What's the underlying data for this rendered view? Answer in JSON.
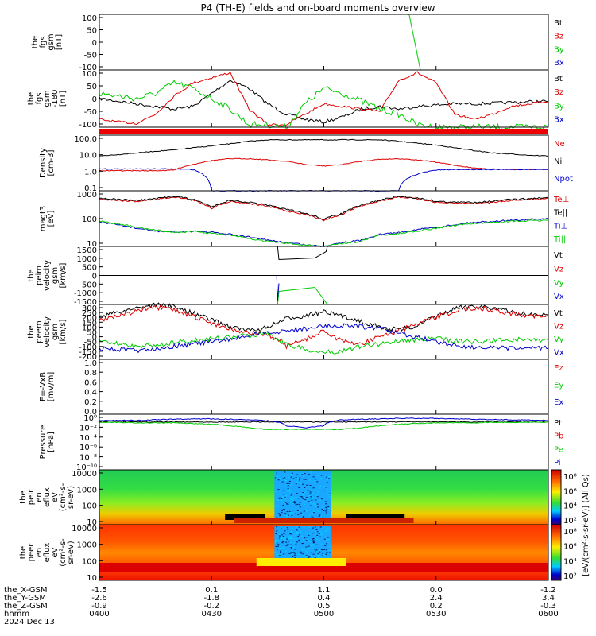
{
  "title": "P4 (TH-E) fields and on-board moments overview",
  "colors": {
    "black": "#000000",
    "red": "#dd0000",
    "green": "#00cc00",
    "blue": "#0000cc",
    "purple": "#cc00cc"
  },
  "panels": [
    {
      "id": "fgs",
      "ylabel": [
        "the",
        "fgs",
        "gsm",
        "[nT]"
      ],
      "ticks": [
        "100",
        "50",
        "0",
        "-50",
        "-100"
      ],
      "legend": [
        {
          "text": "Bt",
          "color": "#000000"
        },
        {
          "text": "Bz",
          "color": "#dd0000"
        },
        {
          "text": "By",
          "color": "#00cc00"
        },
        {
          "text": "Bx",
          "color": "#0000cc"
        }
      ]
    },
    {
      "id": "fgs2",
      "ylabel": [
        "the",
        "fgs",
        "gsm",
        "-180",
        "[nT]"
      ],
      "ticks": [
        "100",
        "50",
        "0",
        "-50",
        "-100"
      ],
      "legend": [
        {
          "text": "Bt",
          "color": "#000000"
        },
        {
          "text": "Bz",
          "color": "#dd0000"
        },
        {
          "text": "By",
          "color": "#00cc00"
        },
        {
          "text": "Bx",
          "color": "#0000cc"
        }
      ]
    },
    {
      "id": "density",
      "ylabel": [
        "Density",
        "[cm-3]"
      ],
      "ticks": [
        "100.0",
        "10.0",
        "1.0",
        "0.1"
      ],
      "legend": [
        {
          "text": "Ne",
          "color": "#dd0000"
        },
        {
          "text": "Ni",
          "color": "#000000"
        },
        {
          "text": "Npot",
          "color": "#0000cc"
        }
      ]
    },
    {
      "id": "temp",
      "ylabel": [
        "magt3",
        "[eV]"
      ],
      "ticks": [
        "1000",
        "100",
        "10"
      ],
      "legend": [
        {
          "text": "Te⊥",
          "color": "#dd0000"
        },
        {
          "text": "Te||",
          "color": "#000000"
        },
        {
          "text": "Ti⊥",
          "color": "#0000cc"
        },
        {
          "text": "Ti||",
          "color": "#00cc00"
        }
      ]
    },
    {
      "id": "peim",
      "ylabel": [
        "the",
        "peim",
        "velocity",
        "gsm",
        "[km/s]"
      ],
      "ticks": [
        "1500",
        "1000",
        "500",
        "0",
        "-500",
        "-1000",
        "-1500"
      ],
      "legend": [
        {
          "text": "Vt",
          "color": "#000000"
        },
        {
          "text": "Vz",
          "color": "#dd0000"
        },
        {
          "text": "Vy",
          "color": "#00cc00"
        },
        {
          "text": "Vx",
          "color": "#0000cc"
        }
      ]
    },
    {
      "id": "peem",
      "ylabel": [
        "the",
        "peem",
        "velocity",
        "gsm",
        "[km/s]"
      ],
      "ticks": [
        "300",
        "250",
        "200",
        "150",
        "100",
        "50",
        "0",
        "-50",
        "-100",
        "-150",
        "-200"
      ],
      "legend": [
        {
          "text": "Vt",
          "color": "#000000"
        },
        {
          "text": "Vz",
          "color": "#dd0000"
        },
        {
          "text": "Vy",
          "color": "#00cc00"
        },
        {
          "text": "Vx",
          "color": "#0000cc"
        }
      ]
    },
    {
      "id": "efield",
      "ylabel": [
        "E=-VxB",
        "[mV/m]"
      ],
      "ticks": [
        "1.0",
        "0.8",
        "0.6",
        "0.4",
        "0.2",
        "0.0"
      ],
      "legend": [
        {
          "text": "Ez",
          "color": "#dd0000"
        },
        {
          "text": "Ey",
          "color": "#00cc00"
        },
        {
          "text": "Ex",
          "color": "#0000cc"
        }
      ]
    },
    {
      "id": "pressure",
      "ylabel": [
        "Pressure",
        "[nPa]"
      ],
      "ticks": [
        "10⁰",
        "10⁻²",
        "10⁻⁴",
        "10⁻⁶",
        "10⁻⁸",
        "10⁻¹⁰"
      ],
      "legend": [
        {
          "text": "Pt",
          "color": "#000000"
        },
        {
          "text": "Pb",
          "color": "#dd0000"
        },
        {
          "text": "Pe",
          "color": "#00cc00"
        },
        {
          "text": "Pi",
          "color": "#0000cc"
        }
      ]
    },
    {
      "id": "peir",
      "ylabel": [
        "the",
        "peir",
        "en",
        "eflux",
        "eV",
        "(cm²-s-",
        "sr-eV)"
      ],
      "ticks": [
        "10000",
        "1000",
        "100",
        "10"
      ],
      "cbar_ticks": [
        "10⁸",
        "10⁶",
        "10⁴",
        "10²"
      ],
      "cbar_label": "[eV/(cm²-s-sr-eV)] (All Qs)"
    },
    {
      "id": "peer",
      "ylabel": [
        "the",
        "peer",
        "en",
        "eflux",
        "eV",
        "(cm²-s-",
        "sr-eV)"
      ],
      "ticks": [
        "10000",
        "1000",
        "100",
        "10"
      ],
      "cbar_ticks": [
        "10⁸",
        "10⁶",
        "10⁴",
        "10²"
      ],
      "cbar_label": "[eV/(cm²-s-sr-eV)] (All Qs)"
    }
  ],
  "xaxis": {
    "row_labels": [
      "the_X-GSM",
      "the_Y-GSM",
      "the_Z-GSM",
      "hhmm",
      "2024 Dec 13"
    ],
    "columns": [
      {
        "x": "-1.5",
        "y": "-2.6",
        "z": "-0.9",
        "t": "0400"
      },
      {
        "x": "0.1",
        "y": "-1.8",
        "z": "-0.2",
        "t": "0430"
      },
      {
        "x": "1.1",
        "y": "0.4",
        "z": "0.5",
        "t": "0500"
      },
      {
        "x": "0.0",
        "y": "2.4",
        "z": "0.2",
        "t": "0530"
      },
      {
        "x": "-1.2",
        "y": "3.4",
        "z": "-0.3",
        "t": "0600"
      }
    ]
  },
  "chart_data": {
    "type": "line",
    "title": "P4 (TH-E) fields and on-board moments overview",
    "time_range": [
      "0400",
      "0600"
    ],
    "date": "2024 Dec 13",
    "x_ticks": [
      "0400",
      "0430",
      "0500",
      "0530",
      "0600"
    ],
    "x": [
      "0400",
      "0405",
      "0410",
      "0415",
      "0420",
      "0425",
      "0430",
      "0435",
      "0440",
      "0445",
      "0450",
      "0455",
      "0500",
      "0505",
      "0510",
      "0515",
      "0520",
      "0525",
      "0530",
      "0535",
      "0540",
      "0545",
      "0550",
      "0555",
      "0600"
    ],
    "density": {
      "ylim": [
        0.05,
        200
      ],
      "scale": "log",
      "series": [
        {
          "name": "Ni",
          "color": "#000000",
          "values": [
            9,
            11,
            14,
            18,
            22,
            30,
            40,
            55,
            80,
            100,
            100,
            100,
            100,
            100,
            100,
            100,
            80,
            60,
            45,
            30,
            20,
            14,
            12,
            10,
            9
          ]
        },
        {
          "name": "Ne",
          "color": "#dd0000",
          "values": [
            1.0,
            1.0,
            1.0,
            1.0,
            1.1,
            2.5,
            4.5,
            6,
            6,
            5,
            4,
            2.5,
            2.0,
            2.5,
            4,
            5.5,
            6,
            5,
            3.5,
            2.2,
            1.5,
            1.3,
            1.2,
            1.2,
            1.2
          ]
        },
        {
          "name": "Npot",
          "color": "#0000cc",
          "values": [
            1.3,
            1.3,
            1.3,
            1.3,
            1.3,
            1.2,
            0.05,
            0.05,
            0.05,
            0.05,
            0.05,
            0.05,
            0.05,
            0.05,
            0.05,
            0.05,
            0.05,
            0.6,
            1.1,
            1.2,
            1.2,
            1.2,
            1.2,
            1.2,
            1.2
          ]
        }
      ]
    },
    "peem_velocity": {
      "ylim": [
        -200,
        300
      ],
      "series": [
        {
          "name": "Vt",
          "color": "#000000",
          "values": [
            190,
            230,
            270,
            300,
            280,
            220,
            160,
            100,
            60,
            90,
            170,
            200,
            230,
            190,
            150,
            90,
            70,
            110,
            190,
            260,
            290,
            270,
            230,
            210,
            200
          ]
        },
        {
          "name": "Vz",
          "color": "#dd0000",
          "values": [
            160,
            200,
            240,
            270,
            250,
            190,
            130,
            80,
            40,
            30,
            -80,
            -20,
            60,
            -40,
            -60,
            10,
            60,
            120,
            180,
            240,
            270,
            250,
            220,
            200,
            190
          ]
        },
        {
          "name": "Vy",
          "color": "#00cc00",
          "values": [
            -40,
            -60,
            -80,
            -70,
            -50,
            -30,
            -10,
            0,
            20,
            40,
            -60,
            -110,
            -140,
            -120,
            -80,
            -60,
            -30,
            -20,
            -10,
            -30,
            -40,
            -30,
            -20,
            -20,
            -30
          ]
        },
        {
          "name": "Vx",
          "color": "#0000cc",
          "values": [
            -100,
            -110,
            -120,
            -100,
            -80,
            -60,
            -40,
            -20,
            20,
            40,
            60,
            80,
            100,
            110,
            100,
            80,
            40,
            0,
            -40,
            -70,
            -90,
            -100,
            -100,
            -100,
            -100
          ]
        }
      ]
    },
    "temperature": {
      "ylim": [
        5,
        3000
      ],
      "scale": "log",
      "series": [
        {
          "name": "Te⊥",
          "color": "#dd0000",
          "values": [
            1200,
            1000,
            900,
            1100,
            1500,
            1000,
            400,
            900,
            700,
            500,
            300,
            200,
            100,
            200,
            500,
            900,
            1500,
            1200,
            800,
            700,
            700,
            800,
            1000,
            1100,
            1300
          ]
        },
        {
          "name": "Te||",
          "color": "#000000",
          "values": [
            1300,
            1100,
            1000,
            1200,
            1600,
            1100,
            450,
            1000,
            800,
            550,
            350,
            220,
            110,
            220,
            550,
            1000,
            1600,
            1300,
            900,
            800,
            800,
            900,
            1100,
            1200,
            1400
          ]
        },
        {
          "name": "Ti⊥",
          "color": "#0000cc",
          "values": [
            80,
            60,
            40,
            30,
            25,
            30,
            25,
            20,
            15,
            10,
            8,
            6,
            5,
            8,
            10,
            20,
            25,
            35,
            45,
            60,
            80,
            90,
            100,
            110,
            120
          ]
        },
        {
          "name": "Ti||",
          "color": "#00cc00",
          "values": [
            90,
            65,
            45,
            32,
            25,
            28,
            22,
            18,
            12,
            9,
            7,
            6,
            5,
            7,
            9,
            18,
            22,
            30,
            40,
            55,
            70,
            80,
            90,
            95,
            100
          ]
        }
      ]
    },
    "pressure": {
      "ylim": [
        1e-10,
        10
      ],
      "scale": "log",
      "series": [
        {
          "name": "Pt",
          "color": "#000000",
          "values": [
            0.3,
            0.3,
            0.3,
            0.3,
            0.3,
            0.3,
            0.3,
            0.3,
            0.3,
            0.3,
            0.3,
            0.3,
            0.3,
            0.3,
            0.3,
            0.3,
            0.3,
            0.3,
            0.3,
            0.3,
            0.3,
            0.3,
            0.3,
            0.3,
            0.3
          ]
        },
        {
          "name": "Pe",
          "color": "#00cc00",
          "values": [
            0.25,
            0.25,
            0.2,
            0.2,
            0.2,
            0.15,
            0.1,
            0.05,
            0.02,
            0.01,
            0.01,
            0.01,
            0.01,
            0.01,
            0.02,
            0.05,
            0.1,
            0.15,
            0.2,
            0.2,
            0.2,
            0.25,
            0.25,
            0.25,
            0.25
          ]
        },
        {
          "name": "Pi",
          "color": "#0000cc",
          "values": [
            0.6,
            0.6,
            0.6,
            0.8,
            1.0,
            1.2,
            1.2,
            1.0,
            0.8,
            0.5,
            0.05,
            0.02,
            0.05,
            0.8,
            1.0,
            1.2,
            1.5,
            1.5,
            1.5,
            1.2,
            1.0,
            0.9,
            0.8,
            0.7,
            0.6
          ]
        }
      ]
    }
  }
}
